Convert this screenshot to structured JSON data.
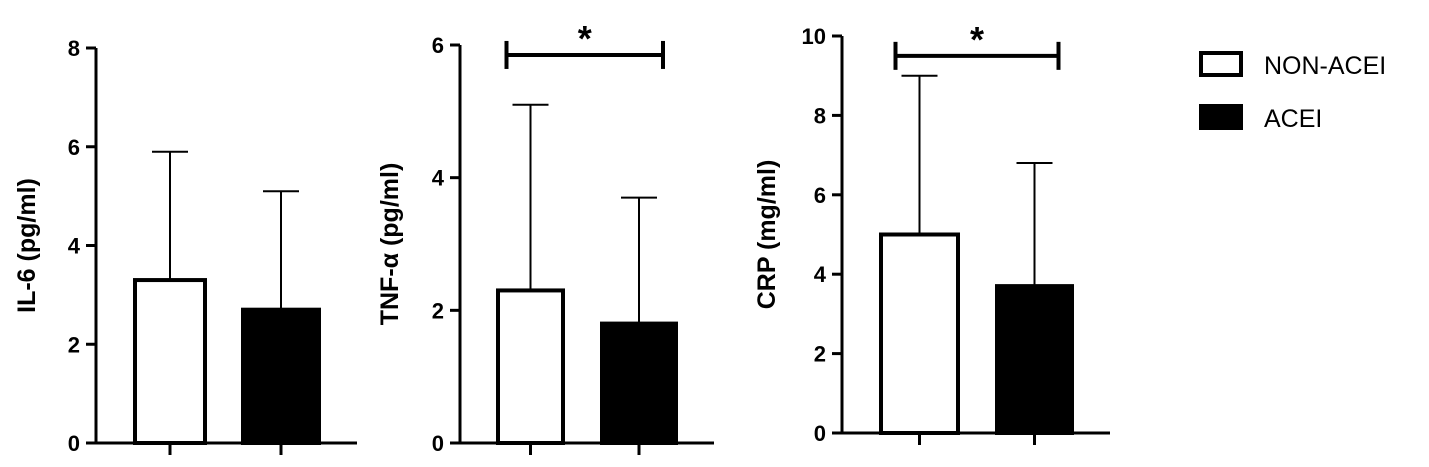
{
  "legend": [
    {
      "name": "NON-ACEI",
      "fill": "#ffffff"
    },
    {
      "name": "ACEI",
      "fill": "#000000"
    }
  ],
  "chart_data": [
    {
      "type": "bar",
      "ylabel": "IL-6 (pg/ml)",
      "ylim": [
        0,
        8
      ],
      "yticks": [
        "0",
        "2",
        "4",
        "6",
        "8"
      ],
      "series": [
        {
          "name": "NON-ACEI",
          "value": 3.3,
          "error_upper": 5.9
        },
        {
          "name": "ACEI",
          "value": 2.7,
          "error_upper": 5.1
        }
      ],
      "significance": null
    },
    {
      "type": "bar",
      "ylabel": "TNF-α (pg/ml)",
      "ylim": [
        0,
        6
      ],
      "yticks": [
        "0",
        "2",
        "4",
        "6"
      ],
      "series": [
        {
          "name": "NON-ACEI",
          "value": 2.3,
          "error_upper": 5.1
        },
        {
          "name": "ACEI",
          "value": 1.8,
          "error_upper": 3.7
        }
      ],
      "significance": {
        "symbol": "*",
        "level": 5.85
      }
    },
    {
      "type": "bar",
      "ylabel": "CRP (mg/ml)",
      "ylim": [
        0,
        10
      ],
      "yticks": [
        "0",
        "2",
        "4",
        "6",
        "8",
        "10"
      ],
      "series": [
        {
          "name": "NON-ACEI",
          "value": 5.0,
          "error_upper": 9.0
        },
        {
          "name": "ACEI",
          "value": 3.7,
          "error_upper": 6.8
        }
      ],
      "significance": {
        "symbol": "*",
        "level": 9.5
      }
    }
  ]
}
